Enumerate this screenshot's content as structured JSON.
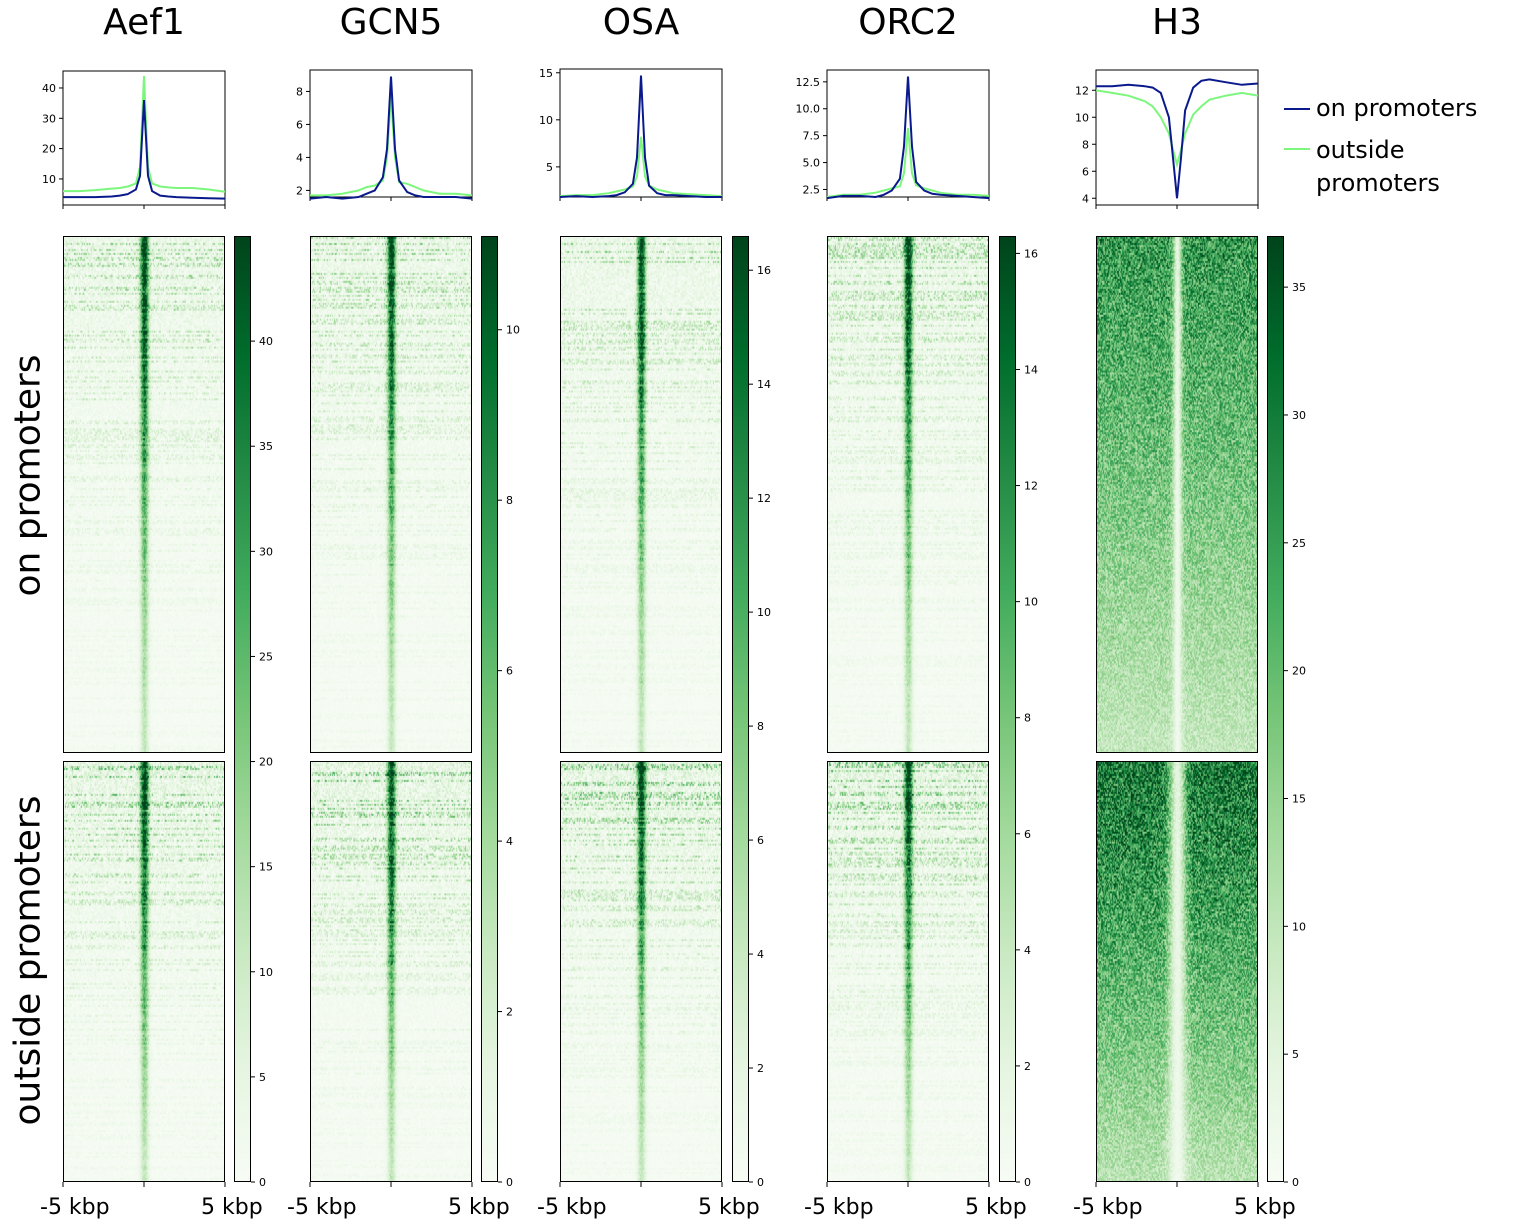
{
  "chart_data": {
    "type": "heatmap",
    "colormap": "Greens",
    "row_groups": [
      "on promoters",
      "outside promoters"
    ],
    "x_tick_labels": [
      "-5 kbp",
      "5 kbp"
    ],
    "legend": {
      "placement": "right",
      "entries": [
        {
          "label": "on promoters",
          "color": "#0a1a8c"
        },
        {
          "label": "outside promoters",
          "color": "#7cf77c"
        }
      ]
    },
    "profile_x_kbp": [
      -5,
      -4,
      -3,
      -2,
      -1.5,
      -1,
      -0.5,
      -0.25,
      0,
      0.25,
      0.5,
      1,
      1.5,
      2,
      3,
      4,
      5
    ],
    "panels": [
      {
        "title": "Aef1",
        "profile": {
          "type": "line",
          "ylim": [
            1.4,
            45.6
          ],
          "yticks": [
            10,
            20,
            30,
            40
          ],
          "series": [
            {
              "name": "on promoters",
              "values": [
                4,
                4,
                4,
                4.2,
                4.5,
                5,
                6.5,
                11,
                36,
                11,
                6,
                4.5,
                4.2,
                4,
                3.8,
                3.6,
                3.5
              ]
            },
            {
              "name": "outside promoters",
              "values": [
                6,
                6,
                6.3,
                6.8,
                7,
                7.5,
                8.5,
                14,
                44,
                14,
                8.5,
                7.5,
                7.2,
                7,
                7,
                6.5,
                5.8
              ]
            }
          ]
        },
        "colorbar": {
          "range": [
            0,
            45
          ],
          "ticks": [
            0,
            5,
            10,
            15,
            20,
            25,
            30,
            35,
            40
          ]
        }
      },
      {
        "title": "GCN5",
        "profile": {
          "type": "line",
          "ylim": [
            1.6,
            9.3
          ],
          "yticks": [
            2,
            4,
            6,
            8
          ],
          "series": [
            {
              "name": "on promoters",
              "values": [
                1.5,
                1.6,
                1.5,
                1.6,
                1.8,
                2,
                2.8,
                4.5,
                8.9,
                4.5,
                2.6,
                1.9,
                1.7,
                1.6,
                1.6,
                1.6,
                1.5
              ]
            },
            {
              "name": "outside promoters",
              "values": [
                1.7,
                1.7,
                1.8,
                2,
                2.2,
                2.3,
                2.6,
                4,
                7.7,
                4,
                2.5,
                2.4,
                2.2,
                2,
                1.8,
                1.8,
                1.7
              ]
            }
          ]
        },
        "colorbar": {
          "range": [
            0,
            11.1
          ],
          "ticks": [
            0,
            2,
            4,
            6,
            8,
            10
          ]
        }
      },
      {
        "title": "OSA",
        "profile": {
          "type": "line",
          "ylim": [
            1.8,
            15.4
          ],
          "yticks": [
            5,
            10,
            15
          ],
          "series": [
            {
              "name": "on promoters",
              "values": [
                1.8,
                1.9,
                1.8,
                1.9,
                2,
                2.3,
                3.2,
                6,
                14.7,
                6,
                3,
                2.2,
                2,
                2,
                1.9,
                1.8,
                1.8
              ]
            },
            {
              "name": "outside promoters",
              "values": [
                1.9,
                2,
                2,
                2.2,
                2.4,
                2.6,
                2.9,
                4,
                8.2,
                4,
                3,
                2.6,
                2.4,
                2.2,
                2.1,
                2,
                1.9
              ]
            }
          ]
        },
        "colorbar": {
          "range": [
            0,
            16.6
          ],
          "ticks": [
            0,
            2,
            4,
            6,
            8,
            10,
            12,
            14,
            16
          ]
        }
      },
      {
        "title": "ORC2",
        "profile": {
          "type": "line",
          "ylim": [
            1.8,
            13.6
          ],
          "yticks": [
            "2.5",
            "5.0",
            "7.5",
            "10.0",
            "12.5"
          ],
          "series": [
            {
              "name": "on promoters",
              "values": [
                1.7,
                1.9,
                1.9,
                1.8,
                2,
                2.4,
                3.5,
                6.5,
                13,
                6.5,
                3.2,
                2.4,
                2.1,
                2,
                1.9,
                1.8,
                1.7
              ]
            },
            {
              "name": "outside promoters",
              "values": [
                1.8,
                2,
                2,
                2.2,
                2.4,
                2.6,
                2.8,
                4,
                8.2,
                4,
                2.9,
                2.6,
                2.4,
                2.2,
                2,
                2,
                1.9
              ]
            }
          ]
        },
        "colorbar": {
          "range": [
            0,
            16.3
          ],
          "ticks": [
            0,
            2,
            4,
            6,
            8,
            10,
            12,
            14,
            16
          ]
        }
      },
      {
        "title": "H3",
        "profile": {
          "type": "line",
          "ylim": [
            3.5,
            13.5
          ],
          "yticks": [
            4,
            6,
            8,
            10,
            12
          ],
          "series": [
            {
              "name": "on promoters",
              "values": [
                12.3,
                12.3,
                12.4,
                12.3,
                12.2,
                11.8,
                10,
                7,
                4,
                7,
                10.5,
                12.2,
                12.7,
                12.8,
                12.6,
                12.4,
                12.5
              ]
            },
            {
              "name": "outside promoters",
              "values": [
                12,
                11.8,
                11.6,
                11.2,
                10.8,
                10,
                8.8,
                7.6,
                6.5,
                7.6,
                8.8,
                10.2,
                10.8,
                11.3,
                11.6,
                11.8,
                11.6
              ]
            }
          ]
        },
        "colorbar": {
          "range": [
            0,
            37
          ],
          "ticks": [
            0,
            5,
            10,
            15,
            20,
            25,
            30,
            35
          ]
        }
      }
    ]
  }
}
